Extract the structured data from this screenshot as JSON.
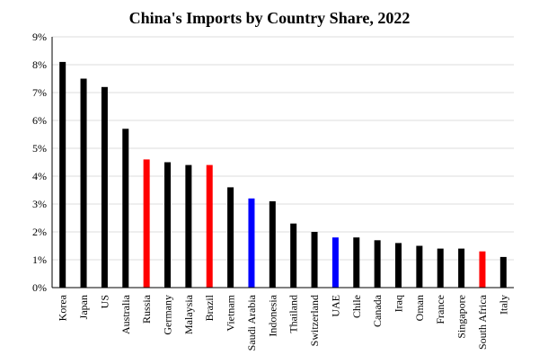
{
  "chart_data": {
    "type": "bar",
    "title": "China's Imports by Country Share, 2022",
    "xlabel": "",
    "ylabel": "",
    "ylim": [
      0,
      9
    ],
    "yticks": [
      "0%",
      "1%",
      "2%",
      "3%",
      "4%",
      "5%",
      "6%",
      "7%",
      "8%",
      "9%"
    ],
    "grid": true,
    "legend": "none",
    "unit": "%",
    "categories": [
      "Korea",
      "Japan",
      "US",
      "Australia",
      "Russia",
      "Germany",
      "Malaysia",
      "Brazil",
      "Vietnam",
      "Saudi Arabia",
      "Indonesia",
      "Thailand",
      "Switzerland",
      "UAE",
      "Chile",
      "Canada",
      "Iraq",
      "Oman",
      "France",
      "Singapore",
      "South Africa",
      "Italy"
    ],
    "values": [
      8.1,
      7.5,
      7.2,
      5.7,
      4.6,
      4.5,
      4.4,
      4.4,
      3.6,
      3.2,
      3.1,
      2.3,
      2.0,
      1.8,
      1.8,
      1.7,
      1.6,
      1.5,
      1.4,
      1.4,
      1.3,
      1.1
    ],
    "colors": [
      "#000000",
      "#000000",
      "#000000",
      "#000000",
      "#ff0000",
      "#000000",
      "#000000",
      "#ff0000",
      "#000000",
      "#0000ff",
      "#000000",
      "#000000",
      "#000000",
      "#0000ff",
      "#000000",
      "#000000",
      "#000000",
      "#000000",
      "#000000",
      "#000000",
      "#ff0000",
      "#000000"
    ]
  }
}
